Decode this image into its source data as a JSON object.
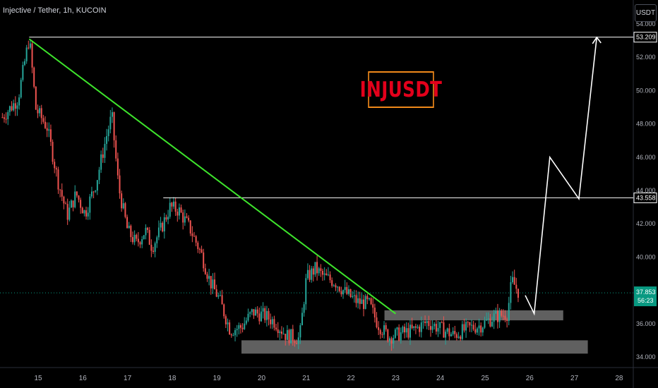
{
  "header": {
    "symbol": "Injective / Tether, 1h, KUCOIN",
    "currency_button": "USDT"
  },
  "annotation": {
    "title": "INJUSDT"
  },
  "colors": {
    "up": "#26a69a",
    "down": "#ef5350",
    "trendline": "#3ee52c",
    "zone": "#808080",
    "price_badge": "#089981",
    "annotation_border": "#f0891a",
    "annotation_text": "#e3001b"
  },
  "chart_data": {
    "type": "candlestick",
    "title": "",
    "x_ticks": [
      "15",
      "16",
      "17",
      "18",
      "19",
      "20",
      "21",
      "22",
      "23",
      "24",
      "25",
      "26",
      "27",
      "28"
    ],
    "y_ticks": [
      "54.000",
      "52.000",
      "50.000",
      "48.000",
      "46.000",
      "44.000",
      "42.000",
      "40.000",
      "38.000",
      "36.000",
      "34.000"
    ],
    "ylim": [
      33.7,
      54.6
    ],
    "xlim": [
      14.2,
      28.7
    ],
    "price_path": [
      [
        14.2,
        48.4
      ],
      [
        14.55,
        49.5
      ],
      [
        14.8,
        53.2
      ],
      [
        14.95,
        48.9
      ],
      [
        15.2,
        47.8
      ],
      [
        15.45,
        44.5
      ],
      [
        15.65,
        42.5
      ],
      [
        15.85,
        43.8
      ],
      [
        16.05,
        42.6
      ],
      [
        16.3,
        44.5
      ],
      [
        16.55,
        47.5
      ],
      [
        16.65,
        48.5
      ],
      [
        16.8,
        44.2
      ],
      [
        17.0,
        41.6
      ],
      [
        17.2,
        40.8
      ],
      [
        17.4,
        41.6
      ],
      [
        17.55,
        40.6
      ],
      [
        17.75,
        41.7
      ],
      [
        17.95,
        43.0
      ],
      [
        18.15,
        42.8
      ],
      [
        18.4,
        41.7
      ],
      [
        18.65,
        40.2
      ],
      [
        18.85,
        38.5
      ],
      [
        19.05,
        37.5
      ],
      [
        19.3,
        35.6
      ],
      [
        19.55,
        35.8
      ],
      [
        19.8,
        36.7
      ],
      [
        20.05,
        36.5
      ],
      [
        20.3,
        36.1
      ],
      [
        20.55,
        35.3
      ],
      [
        20.85,
        35.1
      ],
      [
        21.0,
        38.7
      ],
      [
        21.2,
        39.3
      ],
      [
        21.4,
        38.8
      ],
      [
        21.65,
        38.5
      ],
      [
        21.9,
        37.8
      ],
      [
        22.15,
        37.3
      ],
      [
        22.4,
        37.2
      ],
      [
        22.6,
        36.0
      ],
      [
        22.85,
        35.2
      ],
      [
        23.1,
        35.4
      ],
      [
        23.4,
        35.6
      ],
      [
        23.7,
        36.1
      ],
      [
        24.0,
        35.7
      ],
      [
        24.3,
        35.3
      ],
      [
        24.6,
        35.7
      ],
      [
        24.9,
        35.9
      ],
      [
        25.2,
        36.4
      ],
      [
        25.5,
        36.6
      ],
      [
        25.6,
        38.6
      ],
      [
        25.75,
        37.9
      ]
    ],
    "current_price": "37.853",
    "countdown": "56:23",
    "levels": [
      {
        "label": "53.209",
        "value": 53.209,
        "from_x": 14.8
      },
      {
        "label": "43.558",
        "value": 43.558,
        "from_x": 17.8
      }
    ],
    "trendline": [
      [
        14.8,
        53.1
      ],
      [
        23.0,
        36.6
      ]
    ],
    "zones": [
      {
        "from_x": 22.75,
        "to_x": 26.75,
        "low": 36.2,
        "high": 36.8
      },
      {
        "from_x": 19.55,
        "to_x": 27.3,
        "low": 34.2,
        "high": 35.0
      }
    ],
    "projection": [
      [
        25.9,
        37.7
      ],
      [
        26.1,
        36.6
      ],
      [
        26.45,
        46.0
      ],
      [
        27.1,
        43.5
      ],
      [
        27.5,
        53.2
      ]
    ]
  }
}
